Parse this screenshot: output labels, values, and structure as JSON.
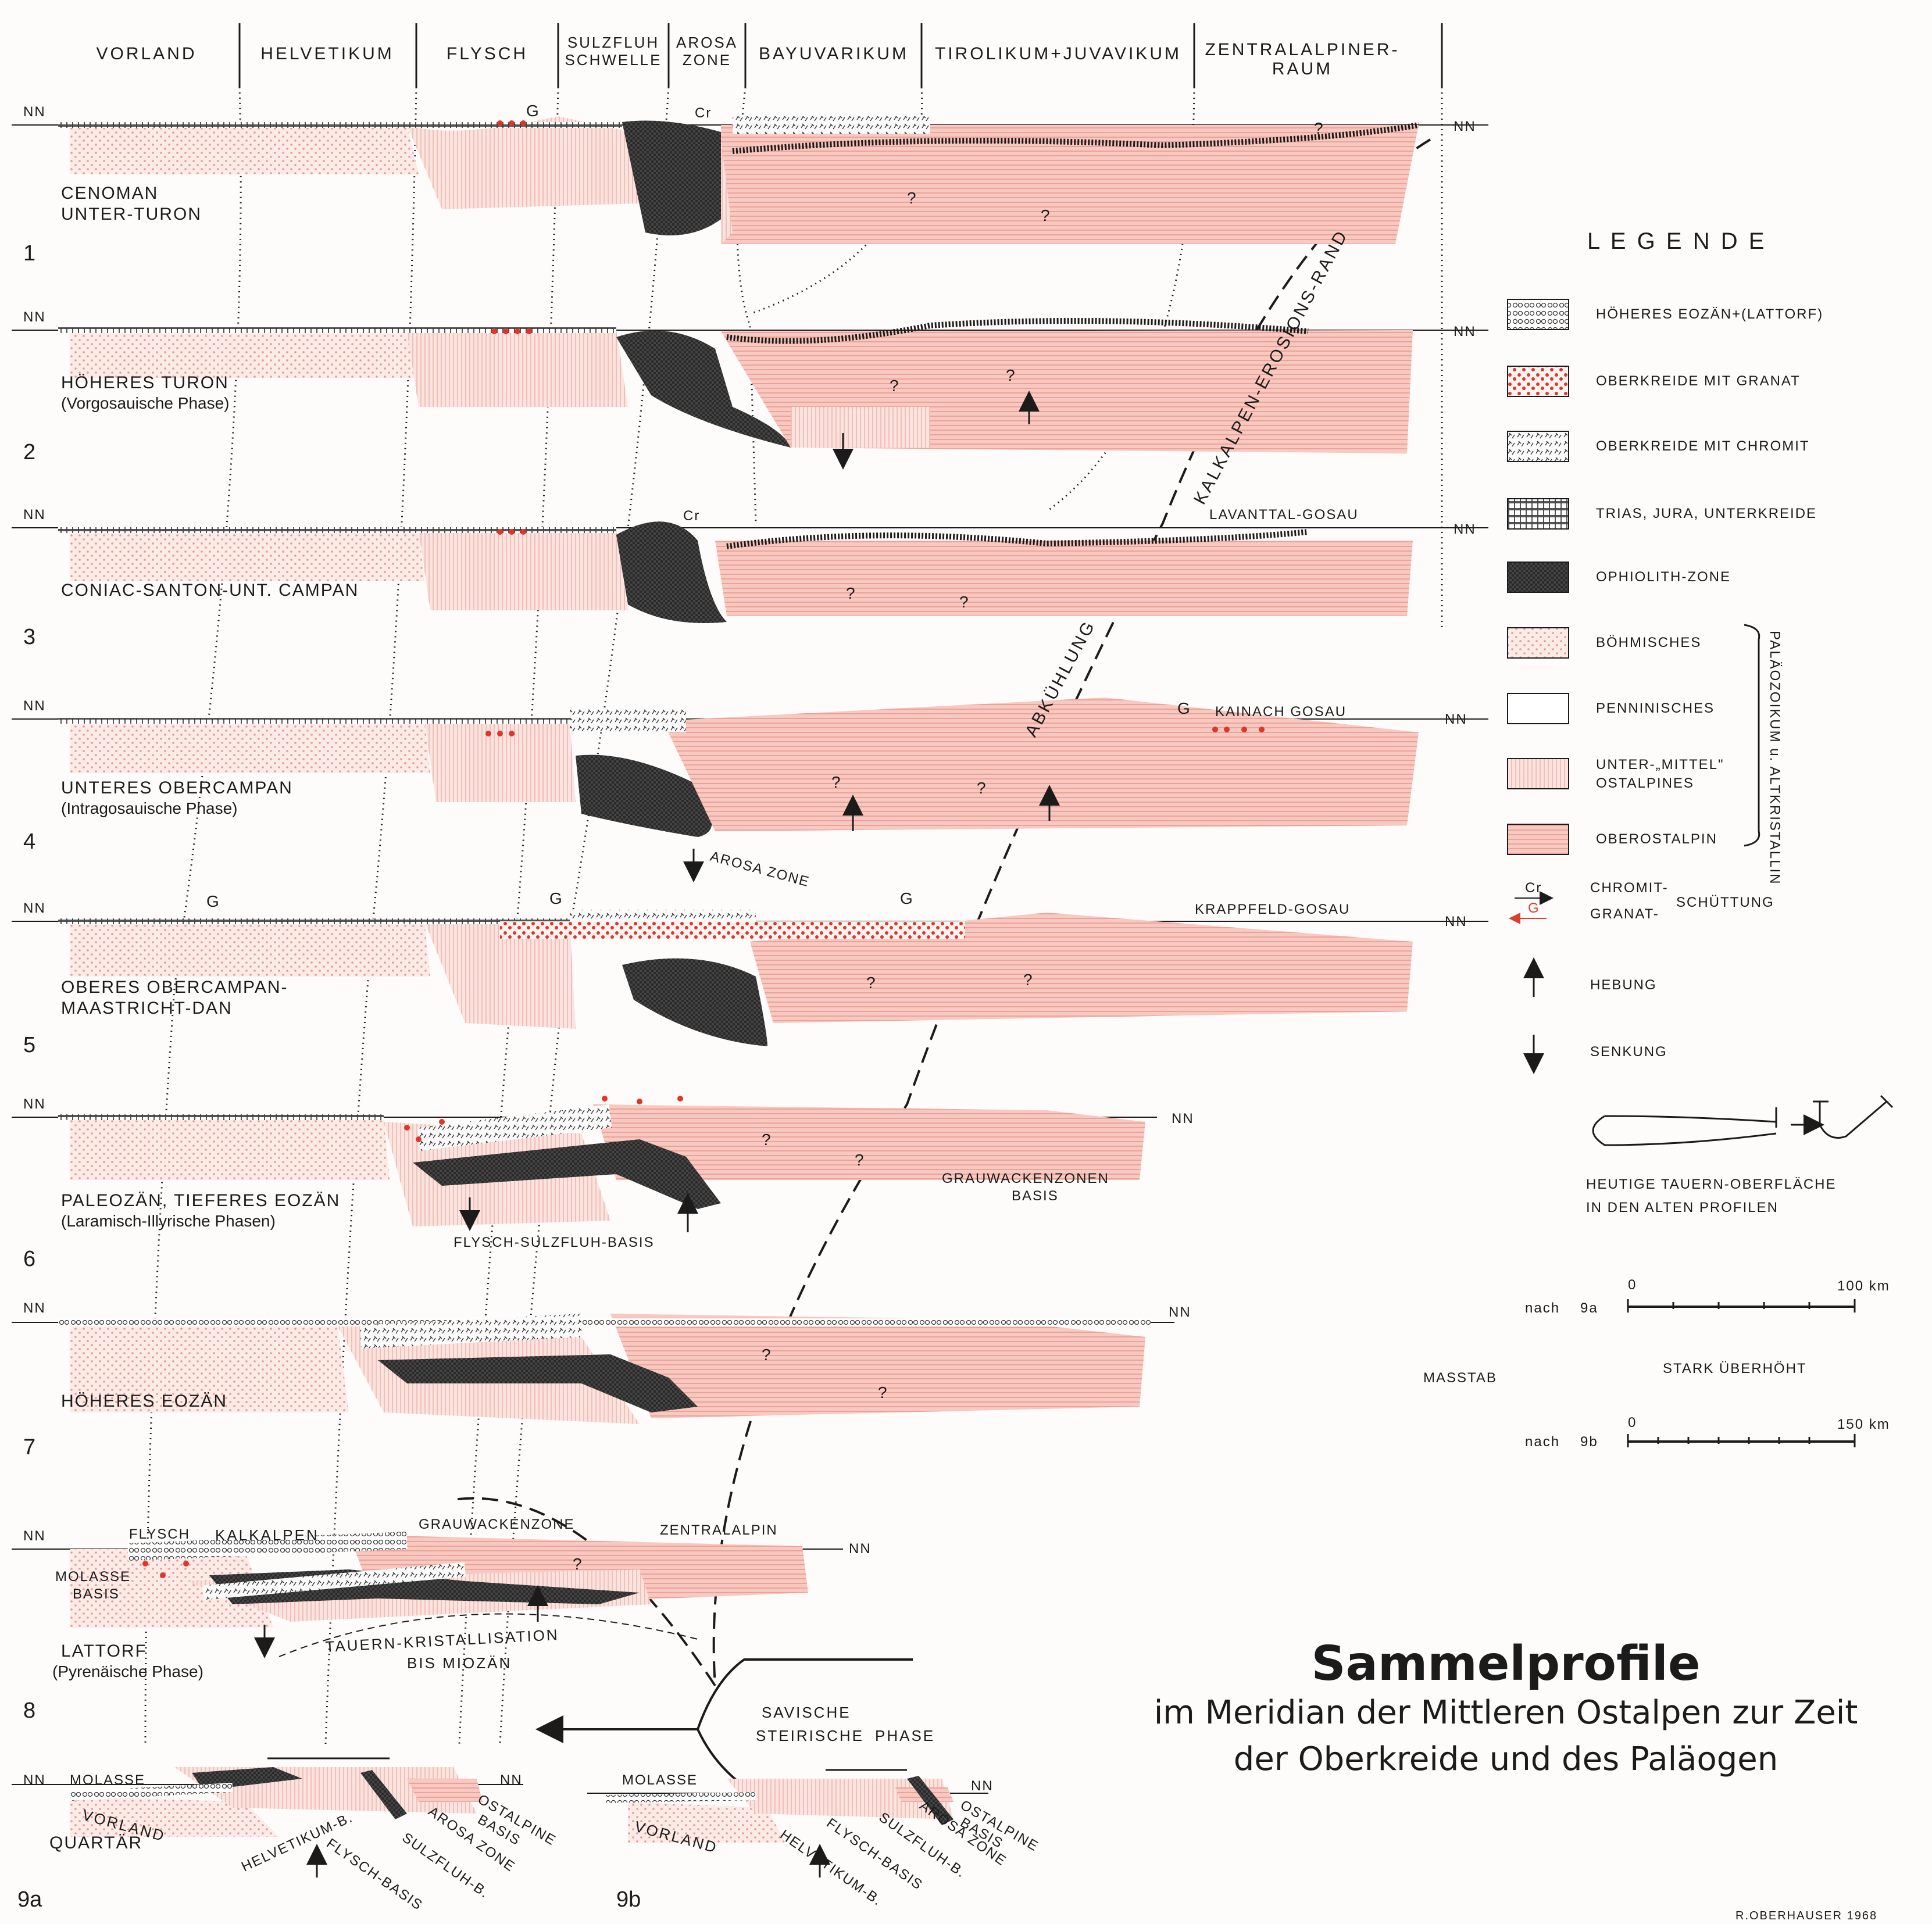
{
  "zones": [
    "VORLAND",
    "HELVETIKUM",
    "FLYSCH",
    "SULZFLUH",
    "SCHWELLE",
    "AROSA",
    "ZONE",
    "BAYUVARIKUM",
    "TIROLIKUM+JUVAVIKUM",
    "ZENTRALALPINER-",
    "RAUM"
  ],
  "sea_level": "NN",
  "profiles": [
    {
      "num": "1",
      "name": "CENOMAN",
      "name2": "UNTER-TURON",
      "phase": ""
    },
    {
      "num": "2",
      "name": "HÖHERES TURON",
      "name2": "",
      "phase": "(Vorgosauische Phase)"
    },
    {
      "num": "3",
      "name": "CONIAC-SANTON-UNT. CAMPAN",
      "name2": "",
      "phase": ""
    },
    {
      "num": "4",
      "name": "UNTERES OBERCAMPAN",
      "name2": "",
      "phase": "(Intragosauische Phase)"
    },
    {
      "num": "5",
      "name": "OBERES OBERCAMPAN-",
      "name2": "MAASTRICHT-DAN",
      "phase": ""
    },
    {
      "num": "6",
      "name": "PALEOZÄN, TIEFERES EOZÄN",
      "name2": "",
      "phase": "(Laramisch-Illyrische Phasen)"
    },
    {
      "num": "7",
      "name": "HÖHERES EOZÄN",
      "name2": "",
      "phase": ""
    },
    {
      "num": "8",
      "name": "LATTORF",
      "name2": "",
      "phase": "(Pyrenäische Phase)"
    },
    {
      "num": "9a",
      "name": "QUARTÄR",
      "name2": "",
      "phase": ""
    },
    {
      "num": "9b",
      "name": "",
      "name2": "",
      "phase": ""
    }
  ],
  "annotations": {
    "cr": "Cr",
    "g": "G",
    "question": "?",
    "lavanttal": "LAVANTTAL-GOSAU",
    "kainach": "KAINACH GOSAU",
    "krappfeld": "KRAPPFELD-GOSAU",
    "arosa_zone": "AROSA ZONE",
    "grauwacken_basis_1": "GRAUWACKENZONEN",
    "grauwacken_basis_2": "BASIS",
    "flysch_sulzfluh_basis": "FLYSCH-SULZFLUH-BASIS",
    "erosion_rand": "KALKALPEN-EROSIONS-RAND",
    "abkuehlung": "ABKÜHLUNG",
    "p8_flysch": "FLYSCH",
    "p8_kalkalpen": "KALKALPEN",
    "p8_grauwacken": "GRAUWACKENZONE",
    "p8_zentralalpin": "ZENTRALALPIN",
    "p8_molasse": "MOLASSE",
    "p8_basis": "BASIS",
    "tauern_kristallisation": "TAUERN-KRISTALLISATION",
    "bis_miozaen": "BIS MIOZÄN",
    "savische": "SAVISCHE",
    "steirische": "STEIRISCHE",
    "phase": "PHASE",
    "molasse": "MOLASSE",
    "vorland": "VORLAND",
    "helvetikum_b": "HELVETIKUM-B.",
    "flysch_basis": "FLYSCH-BASIS",
    "sulzfluh_b": "SULZFLUH-B.",
    "arosa": "AROSA ZONE",
    "ostalpine": "OSTALPINE",
    "ostalpine_basis": "BASIS"
  },
  "legend": {
    "title": "L E G E N D E",
    "items": [
      {
        "label": "HÖHERES EOZÄN+(LATTORF)"
      },
      {
        "label": "OBERKREIDE MIT GRANAT"
      },
      {
        "label": "OBERKREIDE MIT CHROMIT"
      },
      {
        "label": "TRIAS, JURA, UNTERKREIDE"
      },
      {
        "label": "OPHIOLITH-ZONE"
      },
      {
        "label": "BÖHMISCHES"
      },
      {
        "label": "PENNINISCHES"
      },
      {
        "label": "UNTER-„MITTEL\"",
        "label2": "OSTALPINES"
      },
      {
        "label": "OBEROSTALPIN"
      }
    ],
    "bracket_label": "PALÄOZOIKUM u. ALTKRISTALLIN",
    "schuettung_1": "CHROMIT-",
    "schuettung_2": "GRANAT-",
    "schuettung_3": "SCHÜTTUNG",
    "hebung": "HEBUNG",
    "senkung": "SENKUNG",
    "tauern_1": "HEUTIGE TAUERN-OBERFLÄCHE",
    "tauern_2": "IN DEN ALTEN PROFILEN"
  },
  "scale": {
    "label": "MASSTAB",
    "exaggeration": "STARK ÜBERHÖHT",
    "nach": "nach",
    "ref_a": "9a",
    "ref_b": "9b",
    "zero": "0",
    "max_a": "100 km",
    "max_b": "150 km"
  },
  "title": "Sammelprofile",
  "subtitle1": "im Meridian der Mittleren Ostalpen zur Zeit",
  "subtitle2": "der Oberkreide und des Paläogen",
  "author": "R.OBERHAUSER 1968",
  "colors": {
    "oberostalpin": "#f3b8b0",
    "unterostalpin": "#f8e1da",
    "boehmisch": "#f6cfc8",
    "ophiolith": "#2b2b2b",
    "garnet": "#e0362a",
    "line": "#1b1b1b"
  }
}
